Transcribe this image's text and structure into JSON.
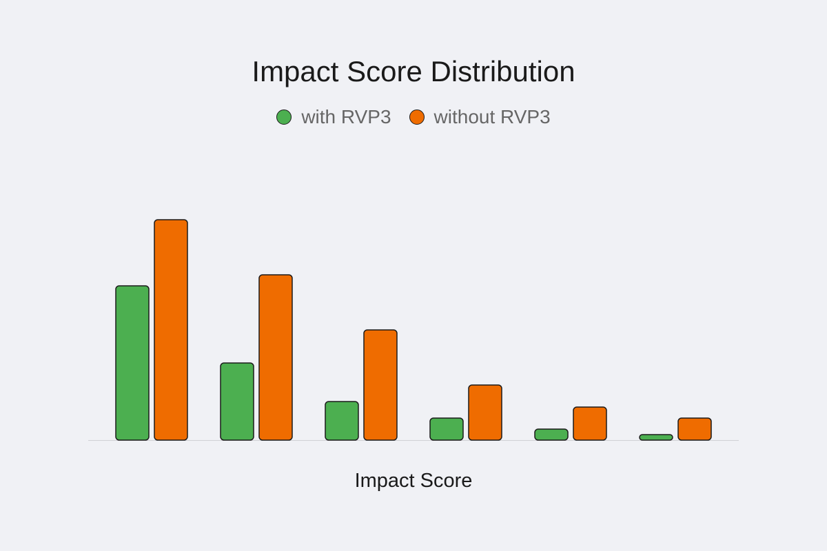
{
  "chart_data": {
    "type": "bar",
    "title": "Impact Score Distribution",
    "xlabel": "Impact Score",
    "ylabel": "",
    "categories": [
      "",
      "",
      "",
      "",
      "",
      ""
    ],
    "ylim": [
      0,
      40
    ],
    "grid": false,
    "legend_position": "top",
    "series": [
      {
        "name": "with RVP3",
        "color": "#4caf50",
        "values": [
          28,
          14,
          7,
          4,
          2,
          1
        ]
      },
      {
        "name": "without RVP3",
        "color": "#ef6c00",
        "values": [
          40,
          30,
          20,
          10,
          6,
          4
        ]
      }
    ]
  }
}
